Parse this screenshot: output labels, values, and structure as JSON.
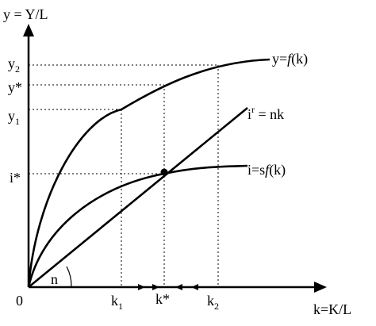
{
  "axes": {
    "y_label": "y = Y/L",
    "x_label": "k=K/L",
    "origin": "0"
  },
  "y_ticks": {
    "y2": {
      "base": "y",
      "sub": "2"
    },
    "ystar": {
      "base": "y*"
    },
    "y1": {
      "base": "y",
      "sub": "1"
    },
    "istar": {
      "base": "i*"
    }
  },
  "x_ticks": {
    "k1": {
      "base": "k",
      "sub": "1"
    },
    "kstar": {
      "base": "k*"
    },
    "k2": {
      "base": "k",
      "sub": "2"
    }
  },
  "curves": {
    "production": {
      "prefix": "y=",
      "func": "f",
      "arg": "(k)"
    },
    "investment": {
      "prefix": "i=s",
      "func": "f",
      "arg": "(k)"
    },
    "depreciation": {
      "base": "i",
      "sup": "r",
      "rest": " = nk"
    }
  },
  "angle_label": "n"
}
